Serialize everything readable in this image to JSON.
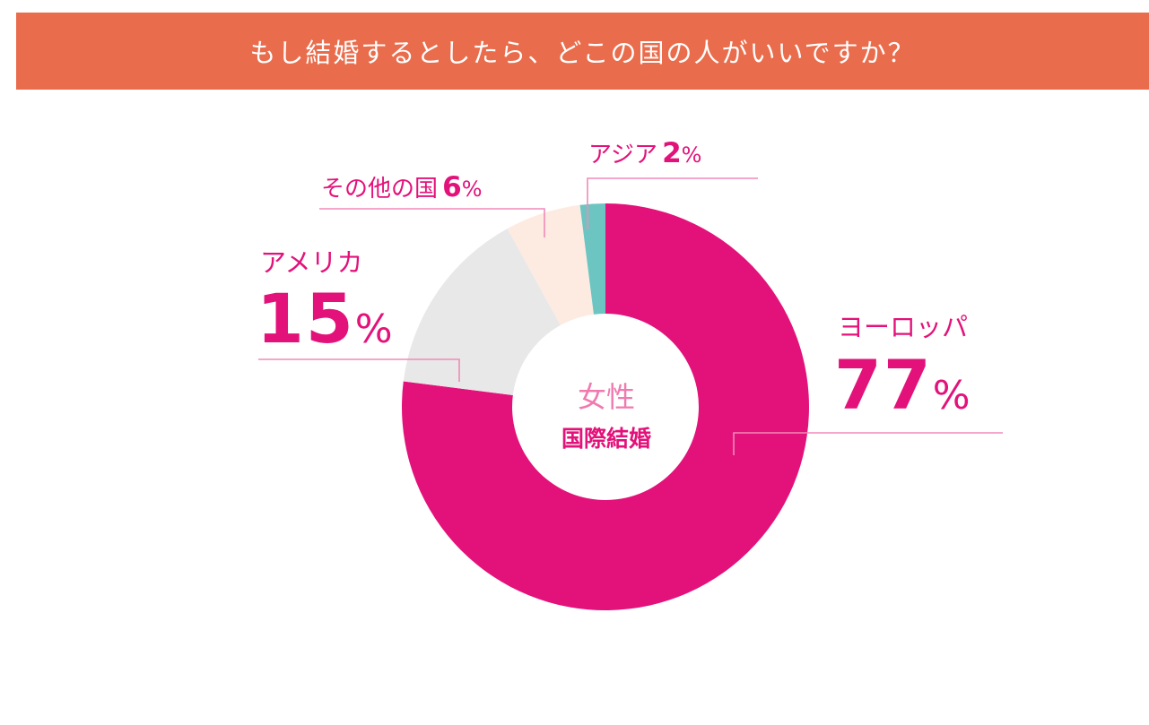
{
  "header": {
    "title": "もし結婚するとしたら、どこの国の人がいいですか？"
  },
  "center_label": {
    "line1": "女性",
    "line2": "国際結婚"
  },
  "colors": {
    "banner": "#e96d4c",
    "europe": "#e3127a",
    "america": "#e8e8e8",
    "other": "#fdebe2",
    "asia": "#6cc5c1",
    "leader": "#f08ab8",
    "label_text": "#e3127a"
  },
  "labels": {
    "asia": {
      "name": "アジア",
      "num": "2",
      "pct": "%"
    },
    "other": {
      "name": "その他の国",
      "num": "6",
      "pct": "%"
    },
    "america": {
      "name": "アメリカ",
      "num": "15",
      "pct": "%"
    },
    "europe": {
      "name": "ヨーロッパ",
      "num": "77",
      "pct": "%"
    }
  },
  "chart_data": {
    "type": "pie",
    "donut": true,
    "start": "12 o'clock",
    "direction": "clockwise",
    "categories": [
      "ヨーロッパ",
      "アメリカ",
      "その他の国",
      "アジア"
    ],
    "values": [
      77,
      15,
      6,
      2
    ],
    "unit": "%",
    "colors": [
      "#e3127a",
      "#e8e8e8",
      "#fdebe2",
      "#6cc5c1"
    ]
  }
}
